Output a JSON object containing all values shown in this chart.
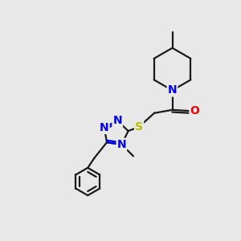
{
  "bg_color": "#e8e8e8",
  "bond_color": "#1a1a1a",
  "N_color": "#0000ee",
  "O_color": "#ee0000",
  "S_color": "#bbbb00",
  "line_width": 1.6,
  "font_size": 10,
  "figsize": [
    3.0,
    3.0
  ],
  "dpi": 100,
  "xlim": [
    0,
    10
  ],
  "ylim": [
    0,
    10
  ]
}
